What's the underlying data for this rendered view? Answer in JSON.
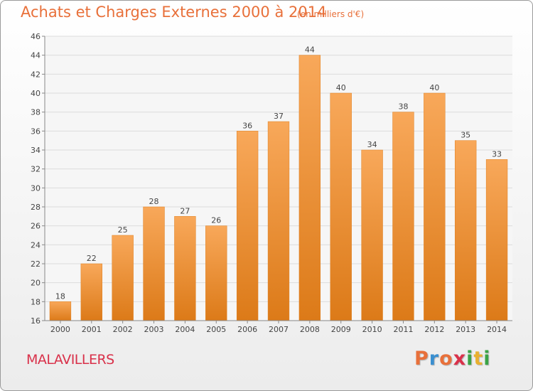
{
  "chart_data": {
    "type": "bar",
    "title": "Achats et Charges Externes 2000 à 2014",
    "subtitle": "(en milliers d'€)",
    "categories": [
      "2000",
      "2001",
      "2002",
      "2003",
      "2004",
      "2005",
      "2006",
      "2007",
      "2008",
      "2009",
      "2010",
      "2011",
      "2012",
      "2013",
      "2014"
    ],
    "values": [
      18,
      22,
      25,
      28,
      27,
      26,
      36,
      37,
      44,
      40,
      34,
      38,
      40,
      35,
      33
    ],
    "ylim": [
      16,
      46
    ],
    "yticks": [
      16,
      18,
      20,
      22,
      24,
      26,
      28,
      30,
      32,
      34,
      36,
      38,
      40,
      42,
      44,
      46
    ],
    "grid": true,
    "bar_color": "#f0912e",
    "xlabel": "",
    "ylabel": ""
  },
  "commune": "MALAVILLERS",
  "logo": {
    "letters": [
      "P",
      "r",
      "o",
      "x",
      "i",
      "t",
      "i"
    ],
    "colors": [
      "#e8703a",
      "#3a8fd0",
      "#e8703a",
      "#d9314a",
      "#3aa346",
      "#e8b030",
      "#3aa346"
    ]
  }
}
